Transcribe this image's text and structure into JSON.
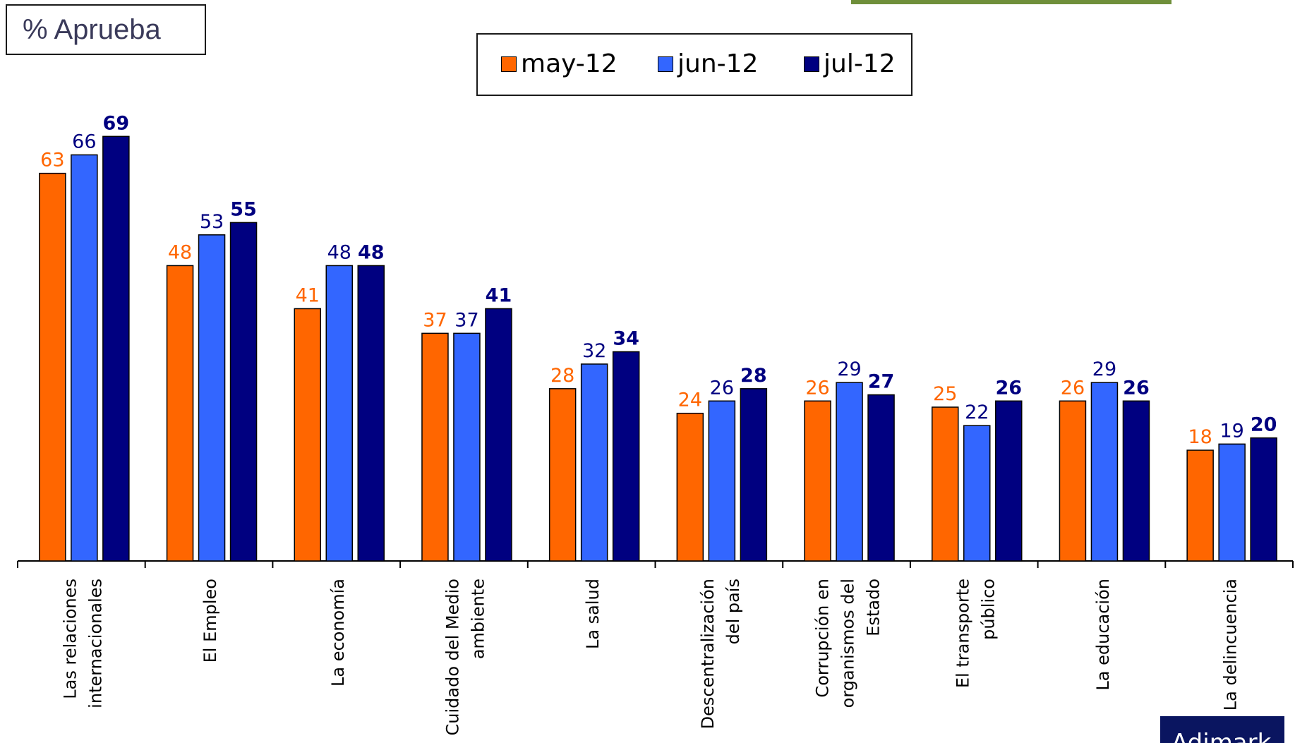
{
  "title": "% Aprueba",
  "brand": "Adimark",
  "colors": {
    "may": "#ff6600",
    "jun": "#3366ff",
    "jul": "#000080",
    "may_label": "#ff6600",
    "jun_label": "#000080",
    "jul_label": "#000080"
  },
  "chart_data": {
    "type": "bar",
    "categories": [
      "Las relaciones internacionales",
      "El Empleo",
      "La economía",
      "Cuidado del Medio ambiente",
      "La salud",
      "Descentralización del país",
      "Corrupción en organismos del Estado",
      "El transporte público",
      "La educación",
      "La delincuencia"
    ],
    "category_lines": [
      [
        "Las relaciones",
        "internacionales"
      ],
      [
        "El Empleo"
      ],
      [
        "La economía"
      ],
      [
        "Cuidado del Medio",
        "ambiente"
      ],
      [
        "La salud"
      ],
      [
        "Descentralización",
        "del país"
      ],
      [
        "Corrupción en",
        "organismos del",
        "Estado"
      ],
      [
        "El transporte",
        "público"
      ],
      [
        "La educación"
      ],
      [
        "La delincuencia"
      ]
    ],
    "series": [
      {
        "name": "may-12",
        "values": [
          63,
          48,
          41,
          37,
          28,
          24,
          26,
          25,
          26,
          18
        ]
      },
      {
        "name": "jun-12",
        "values": [
          66,
          53,
          48,
          37,
          32,
          26,
          29,
          22,
          29,
          19
        ]
      },
      {
        "name": "jul-12",
        "values": [
          69,
          55,
          48,
          41,
          34,
          28,
          27,
          26,
          26,
          20
        ]
      }
    ],
    "ylim": [
      0,
      75
    ],
    "legend": "top-center",
    "grid": false
  }
}
